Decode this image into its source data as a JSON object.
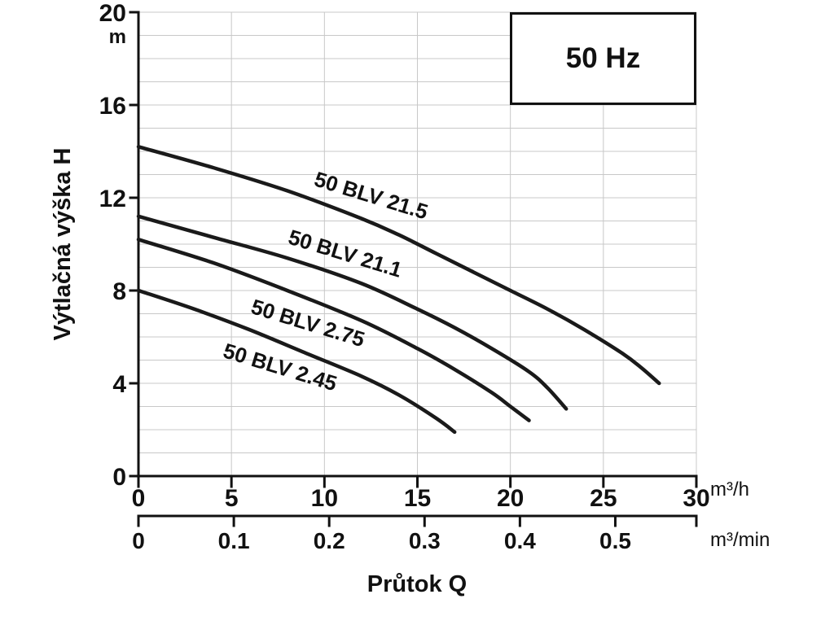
{
  "chart_data": {
    "type": "line",
    "title_box": "50 Hz",
    "ylabel": "Výtlačná výška H",
    "xlabel": "Průtok Q",
    "y_unit": "m",
    "x_unit_primary": "m³/h",
    "x_unit_secondary": "m³/min",
    "xlim": [
      0,
      30
    ],
    "ylim": [
      0,
      20
    ],
    "x2lim": [
      0,
      0.585
    ],
    "x_ticks": [
      0,
      5,
      10,
      15,
      20,
      25,
      30
    ],
    "y_ticks": [
      0,
      4,
      8,
      12,
      16,
      20
    ],
    "x2_ticks": [
      0,
      0.1,
      0.2,
      0.3,
      0.4,
      0.5
    ],
    "grid": {
      "on": true,
      "x_step": 5,
      "y_step": 1
    },
    "legend": "none",
    "label_angle_deg": 17,
    "colors": {
      "curve": "#1a1a1a",
      "grid": "#c8c8c8",
      "axis": "#111111"
    },
    "series": [
      {
        "name": "50 BLV 21.5",
        "label_at": [
          12.4,
          11.8
        ],
        "points": [
          [
            0,
            14.2
          ],
          [
            4,
            13.3
          ],
          [
            8,
            12.3
          ],
          [
            12,
            11.1
          ],
          [
            14,
            10.4
          ],
          [
            16,
            9.6
          ],
          [
            18,
            8.8
          ],
          [
            20,
            8.0
          ],
          [
            22,
            7.2
          ],
          [
            24,
            6.3
          ],
          [
            26,
            5.3
          ],
          [
            27,
            4.7
          ],
          [
            28,
            4.0
          ]
        ]
      },
      {
        "name": "50 BLV 21.1",
        "label_at": [
          11.0,
          9.3
        ],
        "points": [
          [
            0,
            11.2
          ],
          [
            4,
            10.3
          ],
          [
            8,
            9.4
          ],
          [
            12,
            8.3
          ],
          [
            15,
            7.2
          ],
          [
            17,
            6.4
          ],
          [
            19,
            5.5
          ],
          [
            21,
            4.5
          ],
          [
            22,
            3.8
          ],
          [
            23,
            2.9
          ]
        ]
      },
      {
        "name": "50 BLV 2.75",
        "label_at": [
          9.0,
          6.3
        ],
        "points": [
          [
            0,
            10.2
          ],
          [
            4,
            9.2
          ],
          [
            8,
            8.0
          ],
          [
            12,
            6.7
          ],
          [
            15,
            5.5
          ],
          [
            17,
            4.6
          ],
          [
            19,
            3.6
          ],
          [
            20,
            3.0
          ],
          [
            21,
            2.4
          ]
        ]
      },
      {
        "name": "50 BLV 2.45",
        "label_at": [
          7.5,
          4.4
        ],
        "points": [
          [
            0,
            8.0
          ],
          [
            3,
            7.2
          ],
          [
            6,
            6.3
          ],
          [
            9,
            5.3
          ],
          [
            12,
            4.3
          ],
          [
            14,
            3.5
          ],
          [
            16,
            2.5
          ],
          [
            17,
            1.9
          ]
        ]
      }
    ]
  }
}
